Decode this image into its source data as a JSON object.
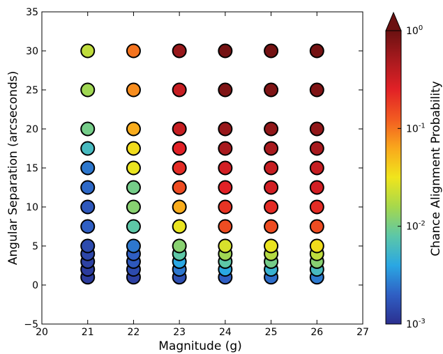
{
  "chart_data": {
    "type": "scatter",
    "title": "",
    "xlabel": "Magnitude (g)",
    "ylabel": "Angular Separation (arcseconds)",
    "xlim": [
      20,
      27
    ],
    "ylim": [
      -5,
      35
    ],
    "xticks": [
      "20",
      "21",
      "22",
      "23",
      "24",
      "25",
      "26",
      "27"
    ],
    "yticks": [
      "−5",
      "0",
      "5",
      "10",
      "15",
      "20",
      "25",
      "30",
      "35"
    ],
    "grid": false,
    "colorbar": {
      "label": "Chance Alignment Probability",
      "scale": "log",
      "range": [
        0.001,
        1
      ],
      "extend": "max",
      "ticks": [
        {
          "base": "10",
          "exp": "0",
          "value": 1
        },
        {
          "base": "10",
          "exp": "-1",
          "value": 0.1
        },
        {
          "base": "10",
          "exp": "-2",
          "value": 0.01
        },
        {
          "base": "10",
          "exp": "-3",
          "value": 0.001
        }
      ],
      "colors": [
        "#2b2f8f",
        "#2f5fc4",
        "#2aa7e3",
        "#5cc7a8",
        "#a6d84c",
        "#f0e51c",
        "#f9a81c",
        "#f25a21",
        "#e12126",
        "#a81a1e",
        "#6b1111"
      ]
    },
    "magnitudes": [
      21,
      22,
      23,
      24,
      25,
      26
    ],
    "separations": [
      1,
      2,
      3,
      4,
      5,
      7.5,
      10,
      12.5,
      15,
      17.5,
      20,
      25,
      30
    ],
    "probability_grid": [
      [
        0.0012,
        0.0013,
        0.0016,
        0.002,
        0.0023,
        0.0026
      ],
      [
        0.0012,
        0.0015,
        0.0025,
        0.004,
        0.005,
        0.006
      ],
      [
        0.0013,
        0.0018,
        0.004,
        0.008,
        0.01,
        0.012
      ],
      [
        0.0014,
        0.002,
        0.008,
        0.015,
        0.018,
        0.02
      ],
      [
        0.0015,
        0.0025,
        0.012,
        0.025,
        0.03,
        0.035
      ],
      [
        0.002,
        0.008,
        0.03,
        0.15,
        0.15,
        0.15
      ],
      [
        0.0018,
        0.012,
        0.06,
        0.2,
        0.22,
        0.22
      ],
      [
        0.0022,
        0.01,
        0.15,
        0.25,
        0.3,
        0.3
      ],
      [
        0.0025,
        0.03,
        0.22,
        0.3,
        0.35,
        0.35
      ],
      [
        0.006,
        0.035,
        0.25,
        0.5,
        0.5,
        0.5
      ],
      [
        0.01,
        0.06,
        0.35,
        0.6,
        0.65,
        0.65
      ],
      [
        0.015,
        0.08,
        0.35,
        0.8,
        0.8,
        0.8
      ],
      [
        0.02,
        0.1,
        0.6,
        0.9,
        0.9,
        0.9
      ]
    ]
  }
}
